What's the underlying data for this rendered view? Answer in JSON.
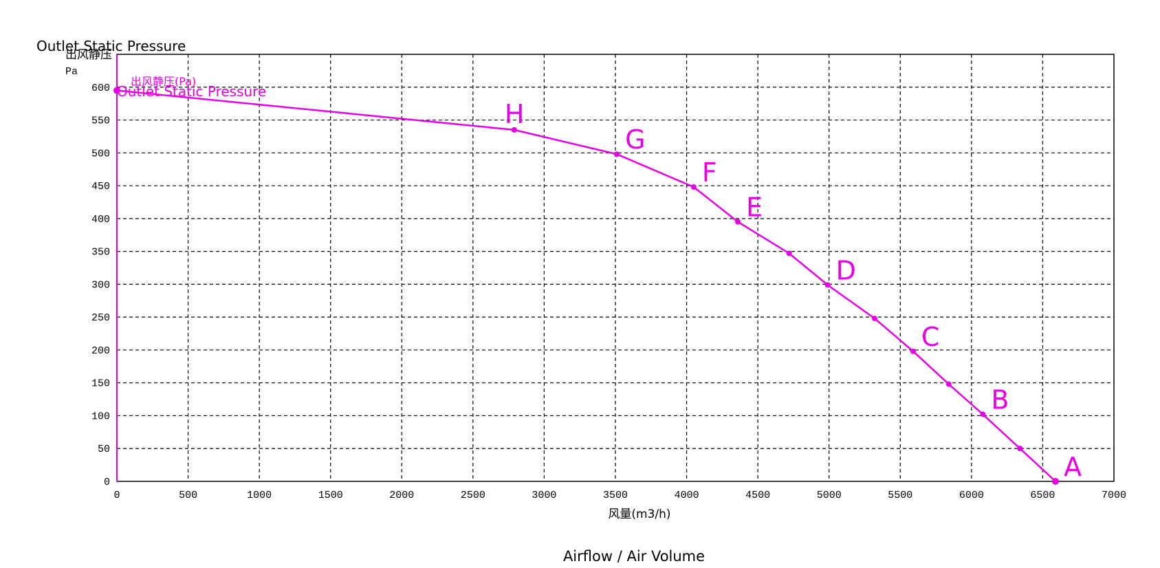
{
  "chart_data": {
    "type": "line",
    "title": "Outlet Static Pressure",
    "title_cn": "出风静压",
    "y_unit": "Pa",
    "xlabel": "风量(m3/h)",
    "xlabel_en": "Airflow / Air Volume",
    "legend_cn": "出风静压(Pa)",
    "legend_en": "Outlet Static Pressure",
    "xlim": [
      0,
      7000
    ],
    "ylim": [
      0,
      650
    ],
    "x_ticks": [
      "0",
      "500",
      "1000",
      "1500",
      "2000",
      "2500",
      "3000",
      "3500",
      "4000",
      "4500",
      "5000",
      "5500",
      "6000",
      "6500",
      "7000"
    ],
    "y_ticks": [
      "0",
      "50",
      "100",
      "150",
      "200",
      "250",
      "300",
      "350",
      "400",
      "450",
      "500",
      "550",
      "600"
    ],
    "grid": true,
    "series_color": "#e600e6",
    "series": [
      {
        "name": "出风静压(Pa)",
        "x": [
          0,
          2790,
          3510,
          4050,
          4360,
          4720,
          4990,
          5320,
          5590,
          5840,
          6080,
          6340,
          6590
        ],
        "y": [
          595,
          535,
          498,
          448,
          395,
          347,
          299,
          248,
          198,
          148,
          102,
          50,
          0
        ]
      }
    ],
    "annotations": [
      {
        "label": "H",
        "x": 2790,
        "y": 535
      },
      {
        "label": "G",
        "x": 3510,
        "y": 498
      },
      {
        "label": "F",
        "x": 4050,
        "y": 448
      },
      {
        "label": "E",
        "x": 4360,
        "y": 395
      },
      {
        "label": "D",
        "x": 4990,
        "y": 299
      },
      {
        "label": "C",
        "x": 5590,
        "y": 198
      },
      {
        "label": "B",
        "x": 6080,
        "y": 102
      },
      {
        "label": "A",
        "x": 6590,
        "y": 0
      }
    ]
  }
}
